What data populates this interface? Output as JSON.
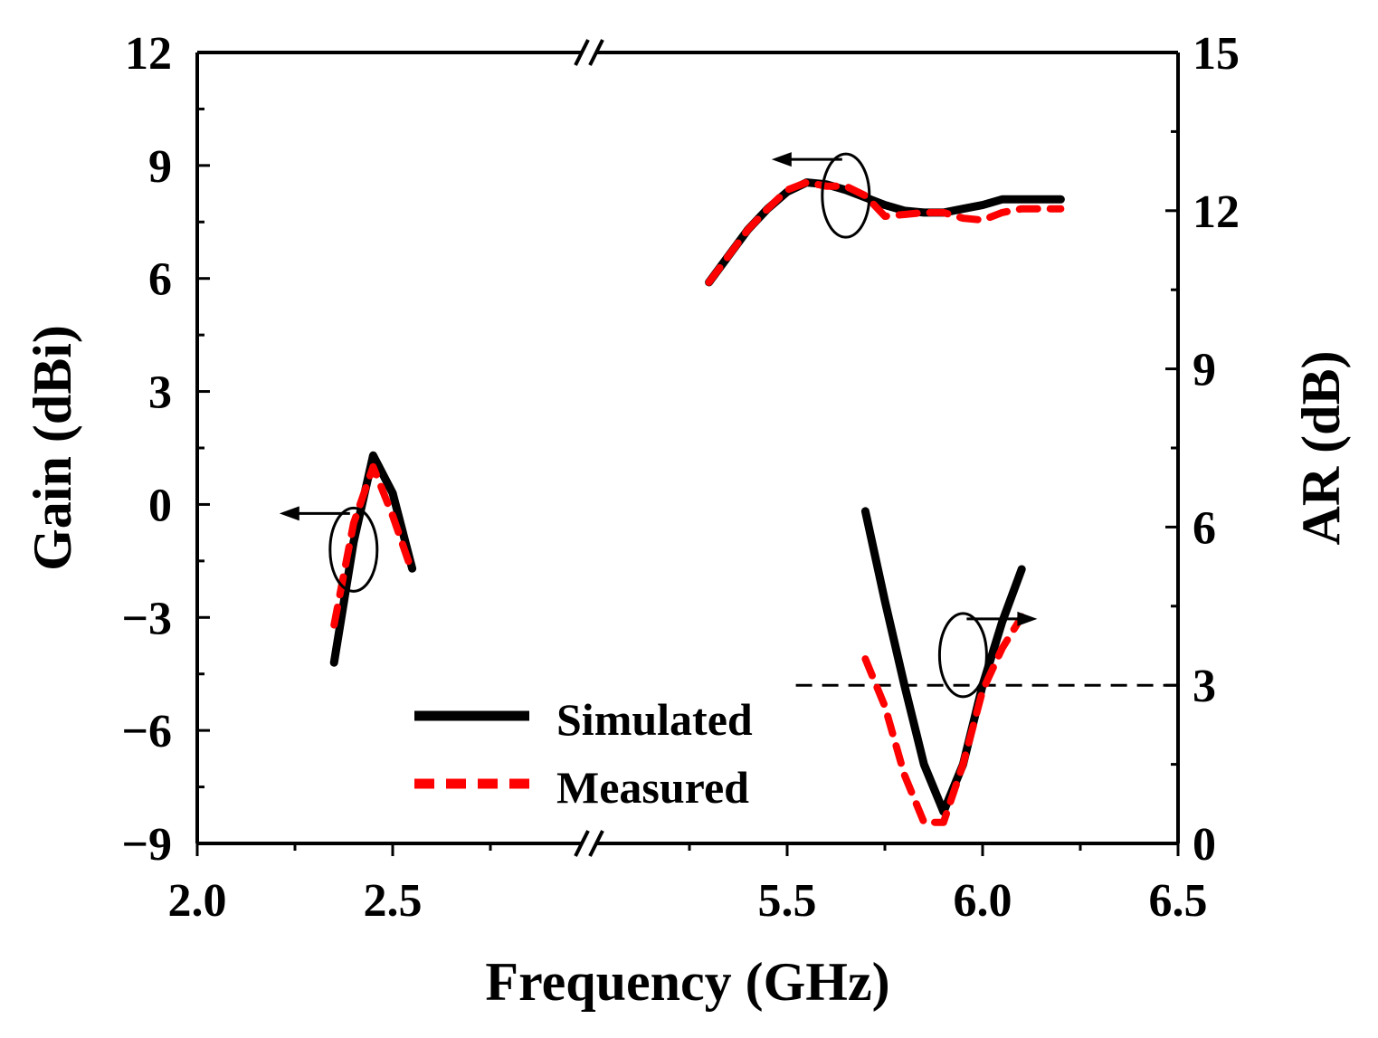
{
  "chart_data": {
    "type": "line",
    "xlabel": "Frequency (GHz)",
    "ylabel_left": "Gain (dBi)",
    "ylabel_right": "AR (dB)",
    "x_axis_break": true,
    "x_segments": [
      {
        "range": [
          2.0,
          3.0
        ],
        "ticks": [
          "2.0",
          "2.5"
        ]
      },
      {
        "range": [
          5.0,
          6.5
        ],
        "ticks": [
          "5.5",
          "6.0",
          "6.5"
        ]
      }
    ],
    "y_left": {
      "range": [
        -9,
        12
      ],
      "ticks": [
        "−9",
        "−6",
        "−3",
        "0",
        "3",
        "6",
        "9",
        "12"
      ]
    },
    "y_right": {
      "range": [
        0,
        15
      ],
      "ticks": [
        "0",
        "3",
        "6",
        "9",
        "12",
        "15"
      ]
    },
    "legend": {
      "position": "bottom-center",
      "entries": [
        "Simulated",
        "Measured"
      ]
    },
    "colors": {
      "simulated": "#000000",
      "measured": "#ff0000"
    },
    "series": [
      {
        "name": "Simulated",
        "quantity": "gain",
        "axis": "left",
        "x": [
          2.35,
          2.4,
          2.45,
          2.5,
          2.55
        ],
        "y": [
          -4.2,
          -1.0,
          1.3,
          0.3,
          -1.7
        ]
      },
      {
        "name": "Measured",
        "quantity": "gain",
        "axis": "left",
        "x": [
          2.35,
          2.4,
          2.45,
          2.5,
          2.55
        ],
        "y": [
          -3.2,
          -0.5,
          1.0,
          -0.3,
          -1.8
        ]
      },
      {
        "name": "Simulated",
        "quantity": "gain",
        "axis": "left",
        "x": [
          5.3,
          5.35,
          5.4,
          5.45,
          5.5,
          5.55,
          5.6,
          5.65,
          5.7,
          5.75,
          5.8,
          5.85,
          5.9,
          5.95,
          6.0,
          6.05,
          6.1,
          6.2
        ],
        "y": [
          5.9,
          6.6,
          7.3,
          7.85,
          8.3,
          8.55,
          8.5,
          8.35,
          8.15,
          7.95,
          7.8,
          7.75,
          7.75,
          7.85,
          7.95,
          8.1,
          8.1,
          8.1
        ]
      },
      {
        "name": "Measured",
        "quantity": "gain",
        "axis": "left",
        "x": [
          5.3,
          5.35,
          5.4,
          5.45,
          5.5,
          5.55,
          5.6,
          5.65,
          5.7,
          5.75,
          5.8,
          5.85,
          5.9,
          5.95,
          6.0,
          6.05,
          6.1,
          6.2
        ],
        "y": [
          5.9,
          6.6,
          7.3,
          7.85,
          8.35,
          8.55,
          8.45,
          8.45,
          8.2,
          7.65,
          7.7,
          7.75,
          7.75,
          7.6,
          7.55,
          7.75,
          7.85,
          7.85
        ]
      },
      {
        "name": "Simulated",
        "quantity": "AR",
        "axis": "right",
        "x": [
          5.7,
          5.75,
          5.8,
          5.85,
          5.9,
          5.95,
          6.0,
          6.05,
          6.1
        ],
        "y": [
          6.3,
          4.6,
          3.0,
          1.5,
          0.6,
          1.5,
          3.0,
          4.2,
          5.2
        ]
      },
      {
        "name": "Measured",
        "quantity": "AR",
        "axis": "right",
        "x": [
          5.7,
          5.75,
          5.8,
          5.85,
          5.9,
          5.95,
          6.0,
          6.05,
          6.1
        ],
        "y": [
          3.5,
          2.6,
          1.3,
          0.4,
          0.4,
          1.5,
          2.9,
          3.7,
          4.3
        ]
      }
    ],
    "reference_line": {
      "axis": "right",
      "y": 3,
      "x_range": [
        5.8,
        6.5
      ],
      "style": "dashed"
    },
    "annotations": [
      {
        "type": "ellipse-arrow",
        "points_to": "left",
        "x": 2.4,
        "y": -1.2
      },
      {
        "type": "ellipse-arrow",
        "points_to": "left",
        "x": 5.65,
        "y": 8.2
      },
      {
        "type": "ellipse-arrow",
        "points_to": "right",
        "x": 5.95,
        "y": -4.0
      }
    ]
  }
}
